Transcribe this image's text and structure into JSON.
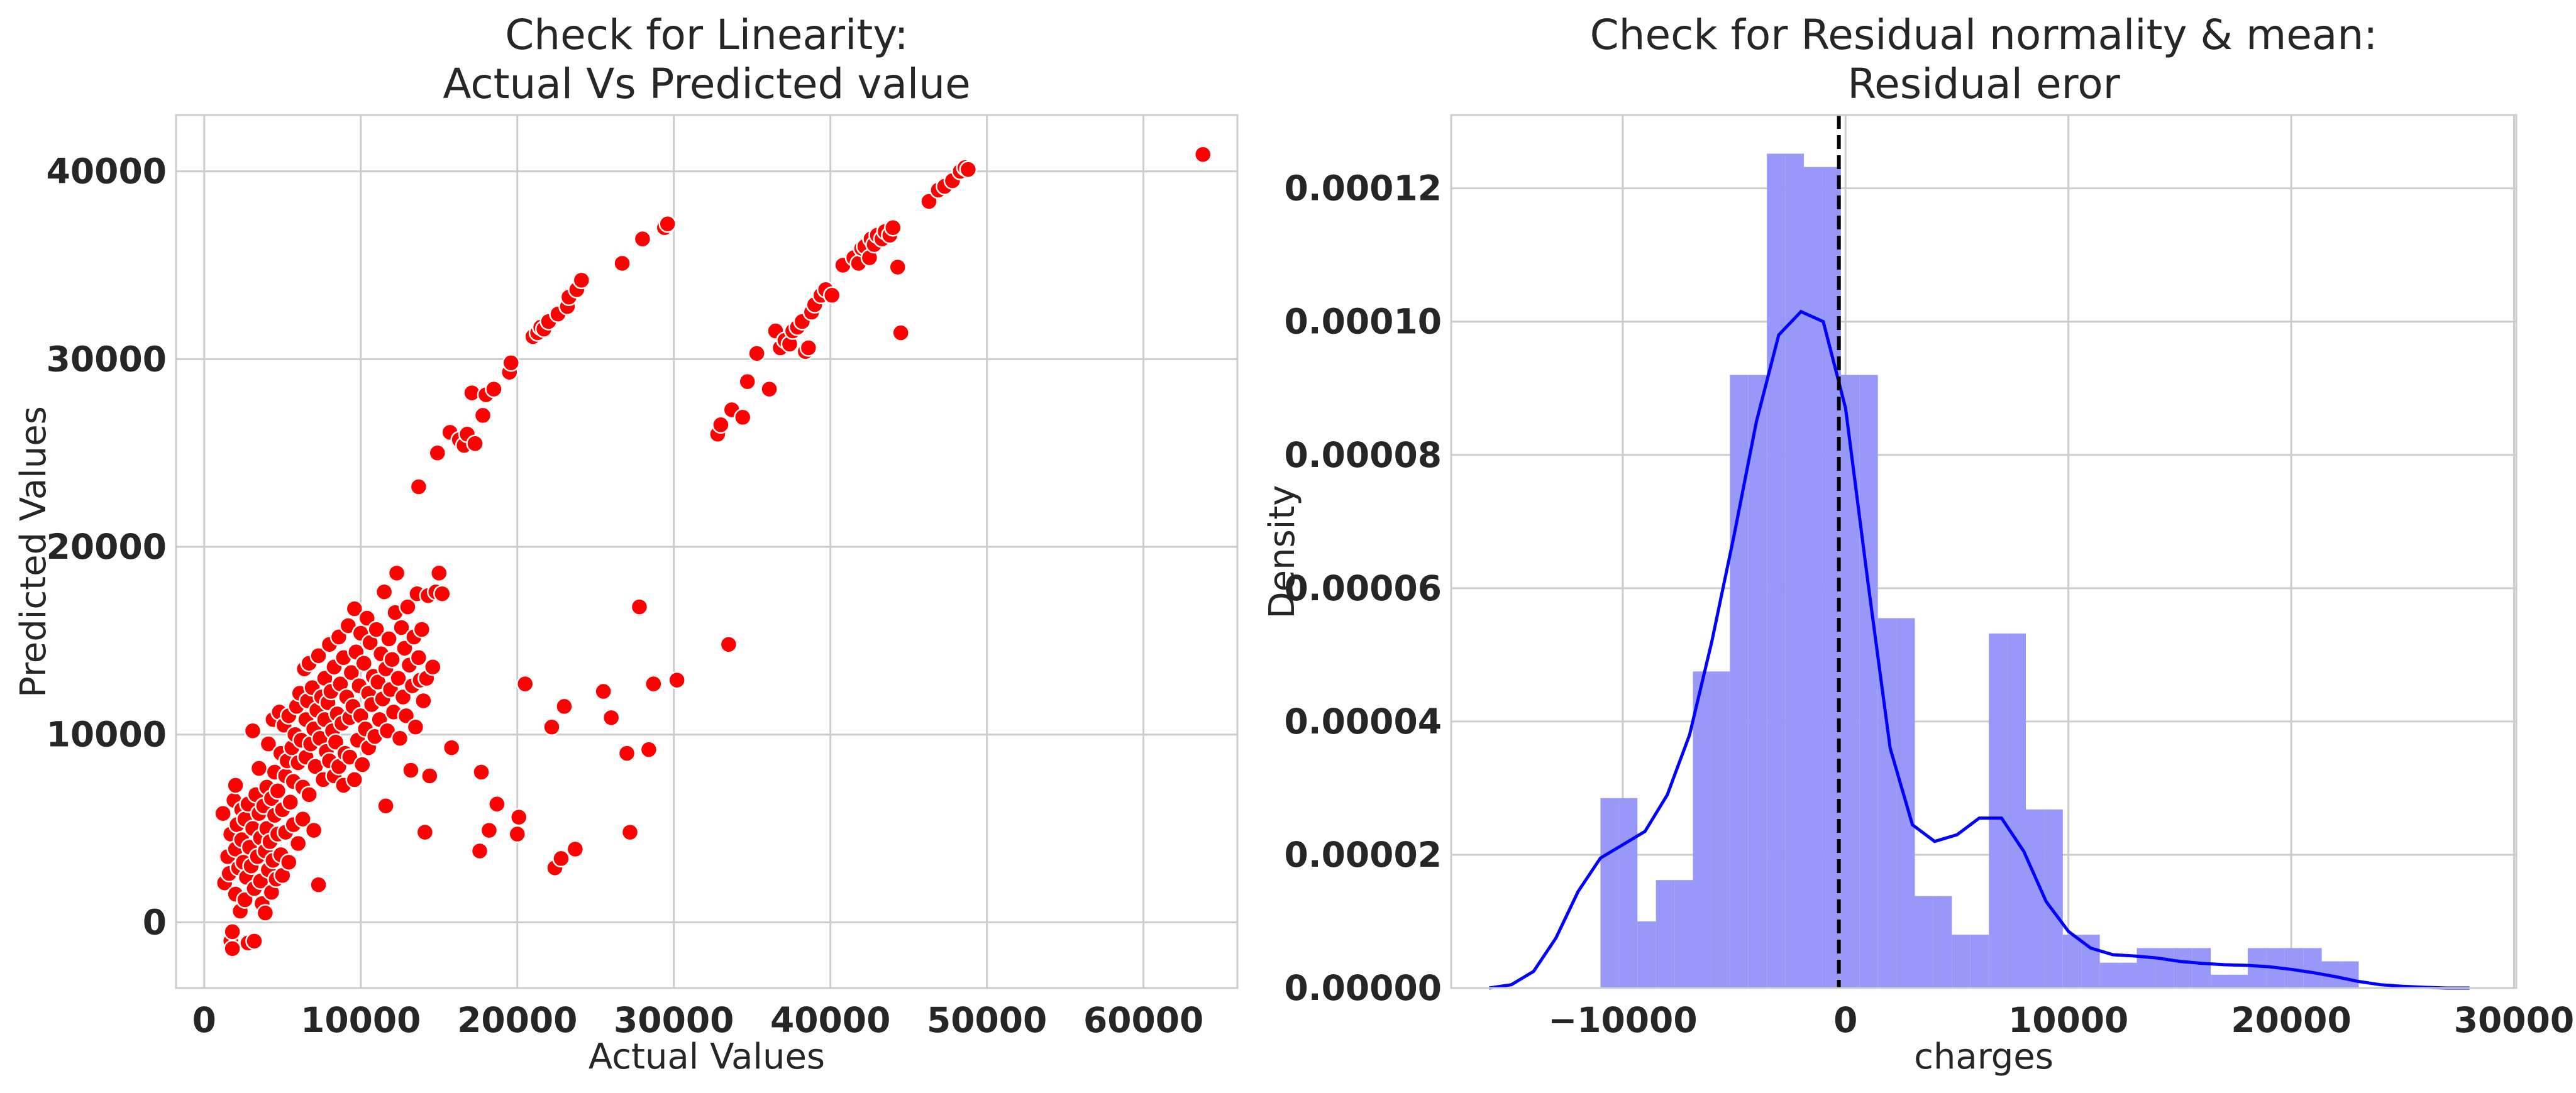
{
  "chart_data": [
    {
      "type": "scatter",
      "title_line1": "Check for Linearity:",
      "title_line2": "Actual Vs Predicted value",
      "xlabel": "Actual Values",
      "ylabel": "Predicted Values",
      "xlim": [
        -1800,
        66000
      ],
      "ylim": [
        -3500,
        43000
      ],
      "xticks": [
        0,
        10000,
        20000,
        30000,
        40000,
        50000,
        60000
      ],
      "yticks": [
        0,
        10000,
        20000,
        30000,
        40000
      ],
      "color": "#ff0000",
      "grid": true,
      "points": [
        [
          1200,
          5800
        ],
        [
          1300,
          2100
        ],
        [
          1500,
          3500
        ],
        [
          1600,
          2600
        ],
        [
          1700,
          4700
        ],
        [
          1700,
          -1000
        ],
        [
          1800,
          -1400
        ],
        [
          1800,
          -500
        ],
        [
          1900,
          6500
        ],
        [
          2000,
          1500
        ],
        [
          2000,
          3900
        ],
        [
          2000,
          7300
        ],
        [
          2100,
          5200
        ],
        [
          2200,
          2900
        ],
        [
          2300,
          600
        ],
        [
          2400,
          4400
        ],
        [
          2400,
          6000
        ],
        [
          2500,
          3200
        ],
        [
          2600,
          1200
        ],
        [
          2600,
          5500
        ],
        [
          2700,
          2400
        ],
        [
          2800,
          6300
        ],
        [
          2800,
          -1100
        ],
        [
          2900,
          4000
        ],
        [
          3000,
          3000
        ],
        [
          3100,
          10200
        ],
        [
          3100,
          5000
        ],
        [
          3200,
          1800
        ],
        [
          3200,
          -1000
        ],
        [
          3300,
          6800
        ],
        [
          3400,
          3500
        ],
        [
          3500,
          5800
        ],
        [
          3500,
          8200
        ],
        [
          3600,
          2200
        ],
        [
          3600,
          4500
        ],
        [
          3700,
          1000
        ],
        [
          3800,
          6200
        ],
        [
          3900,
          3800
        ],
        [
          3900,
          500
        ],
        [
          4000,
          7200
        ],
        [
          4000,
          5000
        ],
        [
          4100,
          2800
        ],
        [
          4100,
          9500
        ],
        [
          4200,
          4300
        ],
        [
          4300,
          6600
        ],
        [
          4300,
          1600
        ],
        [
          4400,
          3300
        ],
        [
          4400,
          10800
        ],
        [
          4500,
          5700
        ],
        [
          4500,
          8000
        ],
        [
          4600,
          2300
        ],
        [
          4700,
          7000
        ],
        [
          4700,
          4700
        ],
        [
          4800,
          11200
        ],
        [
          4900,
          9000
        ],
        [
          4900,
          3600
        ],
        [
          5000,
          6000
        ],
        [
          5000,
          2500
        ],
        [
          5100,
          10500
        ],
        [
          5200,
          7800
        ],
        [
          5200,
          4800
        ],
        [
          5300,
          8600
        ],
        [
          5400,
          11000
        ],
        [
          5400,
          3200
        ],
        [
          5500,
          6400
        ],
        [
          5600,
          9300
        ],
        [
          5700,
          5200
        ],
        [
          5700,
          7500
        ],
        [
          5800,
          10000
        ],
        [
          5900,
          11500
        ],
        [
          6000,
          8500
        ],
        [
          6000,
          4200
        ],
        [
          6100,
          12200
        ],
        [
          6200,
          9700
        ],
        [
          6300,
          5500
        ],
        [
          6300,
          7200
        ],
        [
          6400,
          13500
        ],
        [
          6500,
          10800
        ],
        [
          6500,
          8800
        ],
        [
          6600,
          11800
        ],
        [
          6700,
          13800
        ],
        [
          6700,
          6800
        ],
        [
          6800,
          9500
        ],
        [
          6900,
          12500
        ],
        [
          7000,
          10300
        ],
        [
          7000,
          4900
        ],
        [
          7100,
          8300
        ],
        [
          7200,
          11300
        ],
        [
          7300,
          14200
        ],
        [
          7300,
          2000
        ],
        [
          7400,
          9800
        ],
        [
          7500,
          12000
        ],
        [
          7600,
          7600
        ],
        [
          7700,
          10800
        ],
        [
          7700,
          13000
        ],
        [
          7800,
          9100
        ],
        [
          7900,
          11700
        ],
        [
          8000,
          8600
        ],
        [
          8000,
          14800
        ],
        [
          8100,
          12300
        ],
        [
          8200,
          10200
        ],
        [
          8300,
          7800
        ],
        [
          8300,
          13600
        ],
        [
          8400,
          9600
        ],
        [
          8500,
          11100
        ],
        [
          8600,
          15200
        ],
        [
          8600,
          8300
        ],
        [
          8700,
          12700
        ],
        [
          8800,
          10600
        ],
        [
          8900,
          14100
        ],
        [
          8900,
          7300
        ],
        [
          9000,
          9000
        ],
        [
          9100,
          12000
        ],
        [
          9200,
          15800
        ],
        [
          9300,
          10900
        ],
        [
          9300,
          8800
        ],
        [
          9400,
          13300
        ],
        [
          9500,
          11500
        ],
        [
          9600,
          7600
        ],
        [
          9600,
          16700
        ],
        [
          9700,
          14400
        ],
        [
          9800,
          9700
        ],
        [
          9900,
          12600
        ],
        [
          10000,
          11000
        ],
        [
          10000,
          15400
        ],
        [
          10100,
          8400
        ],
        [
          10200,
          13800
        ],
        [
          10300,
          10300
        ],
        [
          10400,
          16200
        ],
        [
          10500,
          12200
        ],
        [
          10500,
          9300
        ],
        [
          10600,
          14900
        ],
        [
          10700,
          11600
        ],
        [
          10800,
          13100
        ],
        [
          10900,
          9900
        ],
        [
          11000,
          15600
        ],
        [
          11100,
          12800
        ],
        [
          11200,
          10800
        ],
        [
          11300,
          14300
        ],
        [
          11400,
          11900
        ],
        [
          11500,
          17600
        ],
        [
          11600,
          13500
        ],
        [
          11600,
          6200
        ],
        [
          11700,
          10200
        ],
        [
          11800,
          15100
        ],
        [
          11900,
          12400
        ],
        [
          12000,
          14000
        ],
        [
          12100,
          11200
        ],
        [
          12200,
          16500
        ],
        [
          12300,
          18600
        ],
        [
          12400,
          13000
        ],
        [
          12500,
          9800
        ],
        [
          12600,
          15700
        ],
        [
          12700,
          12000
        ],
        [
          12800,
          14600
        ],
        [
          12900,
          11000
        ],
        [
          13000,
          16800
        ],
        [
          13100,
          13700
        ],
        [
          13200,
          8100
        ],
        [
          13300,
          12600
        ],
        [
          13400,
          15200
        ],
        [
          13500,
          10400
        ],
        [
          13600,
          17500
        ],
        [
          13700,
          14100
        ],
        [
          13700,
          23200
        ],
        [
          13800,
          12900
        ],
        [
          13900,
          15600
        ],
        [
          14000,
          11800
        ],
        [
          14100,
          4800
        ],
        [
          14200,
          13000
        ],
        [
          14300,
          17400
        ],
        [
          14400,
          7800
        ],
        [
          14600,
          13600
        ],
        [
          14800,
          17600
        ],
        [
          14900,
          25000
        ],
        [
          15000,
          18600
        ],
        [
          15200,
          17500
        ],
        [
          15700,
          26100
        ],
        [
          15800,
          9300
        ],
        [
          16300,
          25700
        ],
        [
          16600,
          25400
        ],
        [
          16800,
          26000
        ],
        [
          17100,
          28200
        ],
        [
          17300,
          25500
        ],
        [
          17600,
          3800
        ],
        [
          17700,
          8000
        ],
        [
          17800,
          27000
        ],
        [
          18000,
          28100
        ],
        [
          18200,
          4900
        ],
        [
          18500,
          28400
        ],
        [
          18700,
          6300
        ],
        [
          19500,
          29300
        ],
        [
          19600,
          29800
        ],
        [
          20000,
          4700
        ],
        [
          20100,
          5600
        ],
        [
          20500,
          12700
        ],
        [
          21000,
          31200
        ],
        [
          21300,
          31400
        ],
        [
          21500,
          31700
        ],
        [
          21700,
          31600
        ],
        [
          22000,
          32000
        ],
        [
          22200,
          10400
        ],
        [
          22400,
          2900
        ],
        [
          22600,
          32400
        ],
        [
          22800,
          3400
        ],
        [
          23000,
          11500
        ],
        [
          23200,
          32800
        ],
        [
          23300,
          33300
        ],
        [
          23700,
          3900
        ],
        [
          23800,
          33700
        ],
        [
          24100,
          34200
        ],
        [
          25500,
          12300
        ],
        [
          26000,
          10900
        ],
        [
          26700,
          35100
        ],
        [
          27000,
          9000
        ],
        [
          27200,
          4800
        ],
        [
          27800,
          16800
        ],
        [
          28000,
          36400
        ],
        [
          28400,
          9200
        ],
        [
          28700,
          12700
        ],
        [
          29400,
          37000
        ],
        [
          29600,
          37200
        ],
        [
          30200,
          12900
        ],
        [
          32800,
          26000
        ],
        [
          33000,
          26500
        ],
        [
          33500,
          14800
        ],
        [
          33700,
          27300
        ],
        [
          34400,
          26900
        ],
        [
          34700,
          28800
        ],
        [
          35300,
          30300
        ],
        [
          36100,
          28400
        ],
        [
          36500,
          31500
        ],
        [
          36800,
          30600
        ],
        [
          37100,
          31000
        ],
        [
          37400,
          30800
        ],
        [
          37600,
          31500
        ],
        [
          37900,
          31700
        ],
        [
          38200,
          32000
        ],
        [
          38400,
          30400
        ],
        [
          38600,
          30600
        ],
        [
          38800,
          32500
        ],
        [
          39000,
          32900
        ],
        [
          39400,
          33400
        ],
        [
          39700,
          33700
        ],
        [
          40100,
          33400
        ],
        [
          40800,
          35000
        ],
        [
          41500,
          35400
        ],
        [
          41800,
          35100
        ],
        [
          42000,
          35900
        ],
        [
          42200,
          36000
        ],
        [
          42500,
          35400
        ],
        [
          42600,
          36400
        ],
        [
          42800,
          36100
        ],
        [
          43000,
          36600
        ],
        [
          43300,
          36400
        ],
        [
          43500,
          36800
        ],
        [
          43800,
          36600
        ],
        [
          44000,
          37000
        ],
        [
          44300,
          34900
        ],
        [
          44500,
          31400
        ],
        [
          46300,
          38400
        ],
        [
          46900,
          39000
        ],
        [
          47300,
          39200
        ],
        [
          47800,
          39500
        ],
        [
          48300,
          40000
        ],
        [
          48600,
          40200
        ],
        [
          48800,
          40100
        ],
        [
          63800,
          40900
        ]
      ]
    },
    {
      "type": "histogram",
      "title_line1": "Check for Residual normality & mean:",
      "title_line2": "Residual eror",
      "xlabel": "charges",
      "ylabel": "Density",
      "xlim": [
        -17700,
        30100
      ],
      "ylim": [
        0,
        0.000131
      ],
      "xticks": [
        -10000,
        0,
        10000,
        20000,
        30000
      ],
      "xtick_labels": [
        "−10000",
        "0",
        "10000",
        "20000",
        "30000"
      ],
      "yticks": [
        0,
        2e-05,
        4e-05,
        6e-05,
        8e-05,
        0.0001,
        0.00012
      ],
      "ytick_labels": [
        "0.00000",
        "0.00002",
        "0.00004",
        "0.00006",
        "0.00008",
        "0.00010",
        "0.00012"
      ],
      "bar_color": "#9898f8",
      "kde_color": "#0000ff",
      "mean_line_x": -300,
      "bin_edges": [
        -11000,
        -10170,
        -9340,
        -8510,
        -7680,
        -6850,
        -6020,
        -5190,
        -4360,
        -3530,
        -2700,
        -1870,
        -1040,
        -210,
        620,
        1450,
        2280,
        3110,
        3940,
        4770,
        5600,
        6430,
        7260,
        8090,
        8920,
        9750,
        10580,
        11410,
        12240,
        13070,
        13900,
        14730,
        15560,
        16390,
        17220,
        18050,
        18880,
        19710,
        20540,
        21370,
        22200,
        23030
      ],
      "densities": [
        2.85e-05,
        2.85e-05,
        1e-05,
        1.62e-05,
        1.62e-05,
        4.75e-05,
        4.75e-05,
        9.2e-05,
        9.2e-05,
        0.0001252,
        0.0001252,
        0.0001232,
        0.0001232,
        9.2e-05,
        9.2e-05,
        5.55e-05,
        5.55e-05,
        1.38e-05,
        1.38e-05,
        8e-06,
        8e-06,
        5.32e-05,
        5.32e-05,
        2.68e-05,
        2.68e-05,
        8e-06,
        8e-06,
        3.8e-06,
        3.8e-06,
        6e-06,
        6e-06,
        6e-06,
        6e-06,
        2e-06,
        2e-06,
        6e-06,
        6e-06,
        6e-06,
        6e-06,
        4e-06,
        4e-06
      ],
      "kde": [
        [
          -16000,
          0
        ],
        [
          -15000,
          5e-07
        ],
        [
          -14000,
          2.5e-06
        ],
        [
          -13000,
          7.5e-06
        ],
        [
          -12000,
          1.45e-05
        ],
        [
          -11000,
          1.95e-05
        ],
        [
          -10000,
          2.15e-05
        ],
        [
          -9000,
          2.35e-05
        ],
        [
          -8000,
          2.9e-05
        ],
        [
          -7000,
          3.8e-05
        ],
        [
          -6000,
          5.2e-05
        ],
        [
          -5000,
          6.8e-05
        ],
        [
          -4000,
          8.5e-05
        ],
        [
          -3000,
          9.8e-05
        ],
        [
          -2000,
          0.0001015
        ],
        [
          -1000,
          0.0001
        ],
        [
          0,
          8.7e-05
        ],
        [
          1000,
          6.1e-05
        ],
        [
          2000,
          3.6e-05
        ],
        [
          3000,
          2.45e-05
        ],
        [
          4000,
          2.2e-05
        ],
        [
          5000,
          2.3e-05
        ],
        [
          6000,
          2.55e-05
        ],
        [
          7000,
          2.55e-05
        ],
        [
          8000,
          2.05e-05
        ],
        [
          9000,
          1.3e-05
        ],
        [
          10000,
          8.5e-06
        ],
        [
          11000,
          6e-06
        ],
        [
          12000,
          5e-06
        ],
        [
          13000,
          4.8e-06
        ],
        [
          14000,
          4.5e-06
        ],
        [
          15000,
          4e-06
        ],
        [
          16000,
          3.7e-06
        ],
        [
          17000,
          3.5e-06
        ],
        [
          18000,
          3.4e-06
        ],
        [
          19000,
          3.2e-06
        ],
        [
          20000,
          2.8e-06
        ],
        [
          21000,
          2.3e-06
        ],
        [
          22000,
          1.7e-06
        ],
        [
          23000,
          1e-06
        ],
        [
          24000,
          5e-07
        ],
        [
          25000,
          2.5e-07
        ],
        [
          26000,
          1e-07
        ],
        [
          27000,
          0
        ],
        [
          28000,
          0
        ]
      ]
    }
  ]
}
